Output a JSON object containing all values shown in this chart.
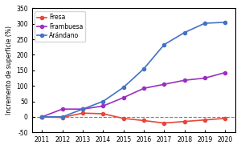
{
  "years": [
    2011,
    2012,
    2013,
    2014,
    2015,
    2016,
    2017,
    2018,
    2019,
    2020
  ],
  "fresa": [
    0,
    -2,
    12,
    10,
    -5,
    -12,
    -20,
    -15,
    -10,
    -5
  ],
  "frambuesa": [
    0,
    25,
    25,
    35,
    62,
    92,
    105,
    118,
    125,
    143
  ],
  "arandano": [
    0,
    0,
    25,
    50,
    95,
    155,
    233,
    272,
    302,
    305
  ],
  "fresa_color": "#e8463a",
  "frambuesa_color": "#9b30c0",
  "arandano_color": "#4472c4",
  "title": "",
  "ylabel": "Incremento de superficie (%)",
  "xlabel": "",
  "ylim": [
    -50,
    350
  ],
  "yticks": [
    -50,
    0,
    50,
    100,
    150,
    200,
    250,
    300,
    350
  ],
  "legend_labels": [
    "Fresa",
    "Frambuesa",
    "Arándano"
  ],
  "dashed_zero": true
}
